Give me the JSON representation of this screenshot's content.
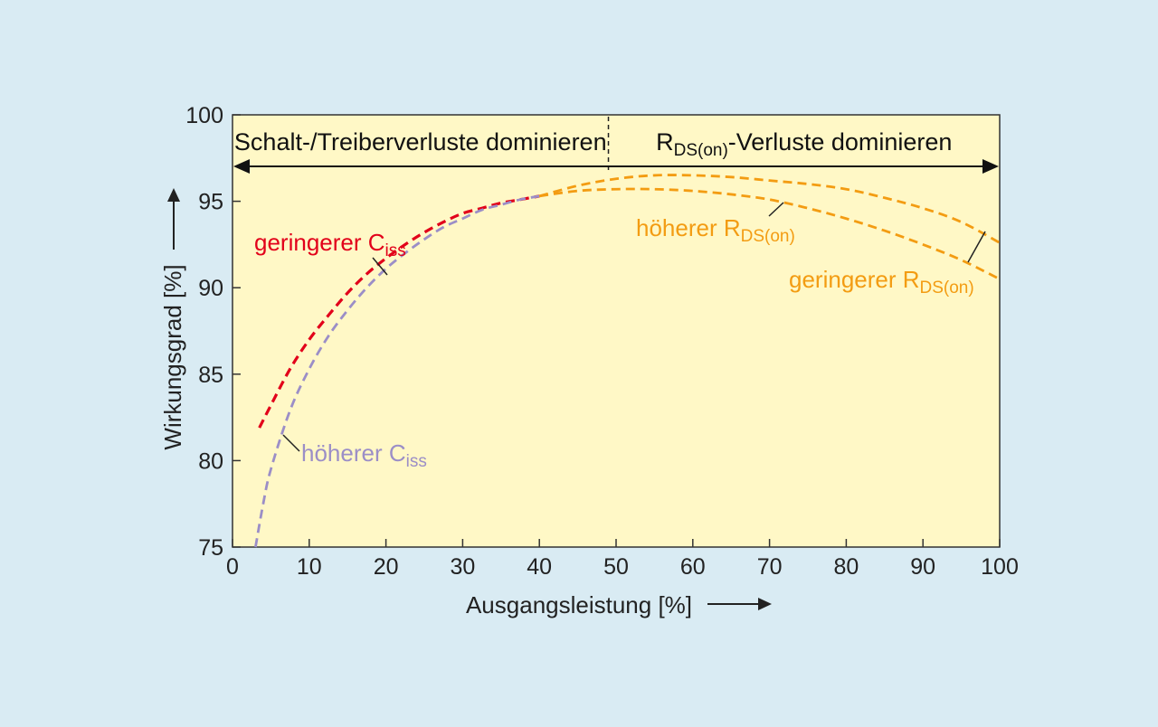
{
  "chart_data": {
    "type": "line",
    "xlabel": "Ausgangsleistung [%]",
    "ylabel": "Wirkungsgrad [%]",
    "xlim": [
      0,
      100
    ],
    "ylim": [
      75,
      100
    ],
    "xticks": [
      0,
      10,
      20,
      30,
      40,
      50,
      60,
      70,
      80,
      90,
      100
    ],
    "yticks": [
      75,
      80,
      85,
      90,
      95,
      100
    ],
    "grid": false,
    "colors": {
      "plot_bg": "#fff8c6",
      "page_bg": "#d9ebf3",
      "red": "#e2001a",
      "purple": "#9b8ec7",
      "orange": "#f39c12"
    },
    "regions": [
      {
        "label": "Schalt-/Treiberverluste dominieren",
        "x_start": 0,
        "x_end": 49
      },
      {
        "label_main": "R",
        "label_sub": "DS(on)",
        "label_rest": "-Verluste dominieren",
        "x_start": 49,
        "x_end": 100
      }
    ],
    "series": [
      {
        "label_main": "geringerer C",
        "label_sub": "iss",
        "color": "#e2001a",
        "x": [
          3.5,
          5,
          7.5,
          10,
          12.5,
          15,
          17.5,
          20,
          22.5,
          25,
          27.5,
          30,
          32.5,
          35,
          37.5,
          40
        ],
        "y": [
          81.9,
          83.2,
          85.3,
          87.0,
          88.4,
          89.7,
          90.8,
          91.7,
          92.5,
          93.2,
          93.8,
          94.3,
          94.6,
          94.9,
          95.1,
          95.3
        ]
      },
      {
        "label_main": "höherer C",
        "label_sub": "iss",
        "color": "#9b8ec7",
        "x": [
          3,
          4,
          5,
          7.5,
          10,
          12.5,
          15,
          17.5,
          20,
          22.5,
          25,
          27.5,
          30,
          32.5,
          35,
          37.5,
          40
        ],
        "y": [
          75.0,
          77.5,
          79.5,
          82.9,
          85.3,
          87.2,
          88.7,
          90.0,
          91.1,
          92.0,
          92.8,
          93.5,
          94.0,
          94.5,
          94.8,
          95.1,
          95.3
        ]
      },
      {
        "label_main": "höherer R",
        "label_sub": "DS(on)",
        "color": "#f39c12",
        "x": [
          40,
          45,
          50,
          55,
          60,
          65,
          70,
          75,
          80,
          85,
          90,
          95,
          100
        ],
        "y": [
          95.3,
          95.6,
          95.7,
          95.7,
          95.6,
          95.4,
          95.1,
          94.6,
          94.0,
          93.3,
          92.5,
          91.6,
          90.5
        ]
      },
      {
        "label_main": "geringerer R",
        "label_sub": "DS(on)",
        "color": "#f39c12",
        "x": [
          40,
          45,
          50,
          55,
          60,
          65,
          70,
          75,
          80,
          85,
          90,
          95,
          100
        ],
        "y": [
          95.3,
          95.9,
          96.3,
          96.5,
          96.5,
          96.4,
          96.2,
          96.0,
          95.7,
          95.2,
          94.6,
          93.8,
          92.6
        ]
      }
    ]
  }
}
